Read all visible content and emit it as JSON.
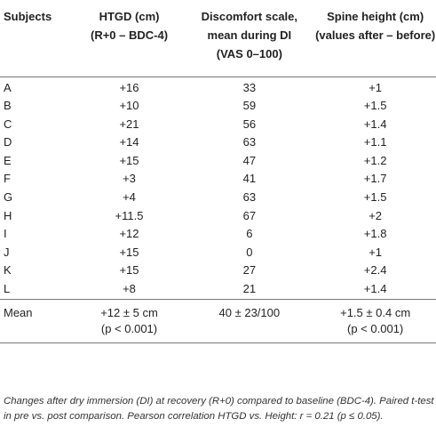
{
  "headers": [
    {
      "lines": [
        "Subjects"
      ]
    },
    {
      "lines": [
        "HTGD (cm)",
        "(R+0 – BDC-4)"
      ]
    },
    {
      "lines": [
        "Discomfort scale,",
        "mean during DI",
        "(VAS 0–100)"
      ]
    },
    {
      "lines": [
        "Spine height (cm)",
        "(values after – before)"
      ]
    }
  ],
  "rows": [
    [
      "A",
      "+16",
      "33",
      "+1"
    ],
    [
      "B",
      "+10",
      "59",
      "+1.5"
    ],
    [
      "C",
      "+21",
      "56",
      "+1.4"
    ],
    [
      "D",
      "+14",
      "63",
      "+1.1"
    ],
    [
      "E",
      "+15",
      "47",
      "+1.2"
    ],
    [
      "F",
      "+3",
      "41",
      "+1.7"
    ],
    [
      "G",
      "+4",
      "63",
      "+1.5"
    ],
    [
      "H",
      "+11.5",
      "67",
      "+2"
    ],
    [
      "I",
      "+12",
      "6",
      "+1.8"
    ],
    [
      "J",
      "+15",
      "0",
      "+1"
    ],
    [
      "K",
      "+15",
      "27",
      "+2.4"
    ],
    [
      "L",
      "+8",
      "21",
      "+1.4"
    ]
  ],
  "mean": {
    "label": "Mean",
    "htgd": "+12 ± 5 cm",
    "htgd_p": "(p < 0.001)",
    "discomfort": "40 ± 23/100",
    "spine": "+1.5 ± 0.4 cm",
    "spine_p": "(p < 0.001)"
  },
  "note": "Changes after dry immersion (DI) at recovery (R+0) compared to baseline (BDC-4). Paired t-test in pre vs. post comparison. Pearson correlation HTGD vs. Height: r = 0.21 (p ≤ 0.05)."
}
